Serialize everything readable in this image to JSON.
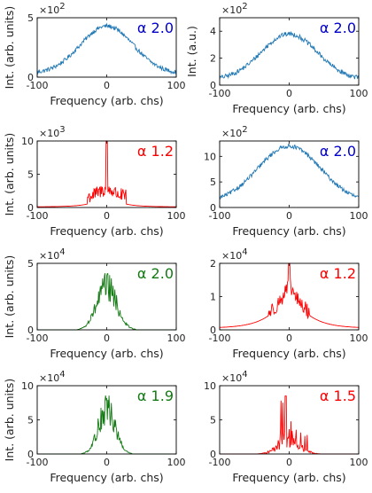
{
  "colors": {
    "blue": "#1f77b4",
    "red": "#ff0000",
    "green": "#137a13",
    "blue_text": "#0000cc"
  },
  "chart_data": [
    {
      "id": "p1",
      "type": "line",
      "color": "blue",
      "xlim": [
        -100,
        100
      ],
      "ylim": [
        0,
        5
      ],
      "xticks": [
        "-100",
        "0",
        "100"
      ],
      "yticks": [
        "0",
        "5"
      ],
      "ytick_values": [
        0,
        5
      ],
      "multiplier": "×10",
      "multiplier_exp": "2",
      "xlabel": "Frequency (arb. chs)",
      "ylabel": "Int. (arb. units)",
      "annotation": {
        "symbol": "α",
        "value": "2.0",
        "color": "blue_text"
      },
      "series": [
        {
          "shape": "broad",
          "peak": 4.3,
          "width": 38,
          "base": 0.3,
          "noise": 0.18,
          "x": [
            -100,
            -75,
            -50,
            -25,
            0,
            25,
            50,
            75,
            100
          ],
          "y": [
            0.6,
            1.0,
            2.0,
            3.5,
            4.3,
            3.5,
            2.0,
            1.0,
            0.6
          ]
        }
      ]
    },
    {
      "id": "p2",
      "type": "line",
      "color": "blue",
      "xlim": [
        -100,
        100
      ],
      "ylim": [
        0,
        5
      ],
      "xticks": [
        "-100",
        "0",
        "100"
      ],
      "yticks": [
        "0",
        "2",
        "4"
      ],
      "ytick_values": [
        0,
        2,
        4
      ],
      "multiplier": "×10",
      "multiplier_exp": "2",
      "xlabel": "Frequency (arb. chs)",
      "ylabel": "Int. (a.u.)",
      "annotation": {
        "symbol": "α",
        "value": "2.0",
        "color": "blue_text"
      },
      "series": [
        {
          "shape": "broad",
          "peak": 3.8,
          "width": 40,
          "base": 0.4,
          "noise": 0.17,
          "x": [
            -100,
            -75,
            -50,
            -25,
            0,
            25,
            50,
            75,
            100
          ],
          "y": [
            0.7,
            1.1,
            2.0,
            3.2,
            3.8,
            3.2,
            2.0,
            1.1,
            0.7
          ]
        }
      ]
    },
    {
      "id": "p3",
      "type": "line",
      "color": "red",
      "xlim": [
        -100,
        100
      ],
      "ylim": [
        0,
        10
      ],
      "xticks": [
        "-100",
        "0",
        "100"
      ],
      "yticks": [
        "0",
        "5",
        "10"
      ],
      "ytick_values": [
        0,
        5,
        10
      ],
      "multiplier": "×10",
      "multiplier_exp": "3",
      "xlabel": "Frequency (arb. chs)",
      "ylabel": "Int. (arb. units)",
      "annotation": {
        "symbol": "α",
        "value": "1.2",
        "color": "red"
      },
      "series": [
        {
          "shape": "spiky",
          "peak": 10,
          "width": 18,
          "base": 0.05,
          "noise": 1.2,
          "x": [
            -100,
            -50,
            -20,
            -10,
            0,
            10,
            20,
            50,
            100
          ],
          "y": [
            0.1,
            0.4,
            1.5,
            2.5,
            10,
            2.5,
            1.5,
            0.4,
            0.1
          ]
        }
      ]
    },
    {
      "id": "p4",
      "type": "line",
      "color": "blue",
      "xlim": [
        -100,
        100
      ],
      "ylim": [
        0,
        13
      ],
      "xticks": [
        "-100",
        "0",
        "100"
      ],
      "yticks": [
        "0",
        "5",
        "10"
      ],
      "ytick_values": [
        0,
        5,
        10
      ],
      "multiplier": "×10",
      "multiplier_exp": "2",
      "xlabel": "Frequency (arb. chs)",
      "ylabel": "",
      "annotation": {
        "symbol": "α",
        "value": "2.0",
        "color": "blue_text"
      },
      "series": [
        {
          "shape": "broad",
          "peak": 12,
          "width": 45,
          "base": 1.0,
          "noise": 0.4,
          "x": [
            -100,
            -75,
            -50,
            -25,
            0,
            25,
            50,
            75,
            100
          ],
          "y": [
            2.2,
            3.5,
            6.0,
            9.5,
            12.0,
            9.5,
            6.0,
            3.5,
            2.2
          ]
        }
      ]
    },
    {
      "id": "p5",
      "type": "line",
      "color": "green",
      "xlim": [
        -100,
        100
      ],
      "ylim": [
        0,
        5
      ],
      "xticks": [
        "-100",
        "0",
        "100"
      ],
      "yticks": [
        "0",
        "5"
      ],
      "ytick_values": [
        0,
        5
      ],
      "multiplier": "×10",
      "multiplier_exp": "4",
      "xlabel": "Frequency (arb. chs)",
      "ylabel": "Int. (arb. units)",
      "annotation": {
        "symbol": "α",
        "value": "2.0",
        "color": "green"
      },
      "series": [
        {
          "shape": "narrow",
          "peak": 3.8,
          "width": 14,
          "base": 0.0,
          "noise": 0.5,
          "x": [
            -100,
            -40,
            -20,
            -10,
            0,
            10,
            20,
            40,
            100
          ],
          "y": [
            0,
            0.1,
            1.2,
            3.0,
            3.8,
            3.0,
            1.2,
            0.1,
            0
          ]
        }
      ]
    },
    {
      "id": "p6",
      "type": "line",
      "color": "red",
      "xlim": [
        -100,
        100
      ],
      "ylim": [
        0,
        2
      ],
      "xticks": [
        "-100",
        "0",
        "100"
      ],
      "yticks": [
        "0",
        "1",
        "2"
      ],
      "ytick_values": [
        0,
        1,
        2
      ],
      "multiplier": "×10",
      "multiplier_exp": "4",
      "xlabel": "Frequency (arb. chs)",
      "ylabel": "",
      "annotation": {
        "symbol": "α",
        "value": "1.2",
        "color": "red"
      },
      "series": [
        {
          "shape": "cusp",
          "peak": 2.0,
          "width": 25,
          "base": 0.05,
          "noise": 0.15,
          "x": [
            -100,
            -50,
            -25,
            -10,
            0,
            10,
            25,
            50,
            100
          ],
          "y": [
            0.1,
            0.3,
            0.7,
            1.3,
            2.0,
            1.3,
            0.7,
            0.3,
            0.1
          ]
        }
      ]
    },
    {
      "id": "p7",
      "type": "line",
      "color": "green",
      "xlim": [
        -100,
        100
      ],
      "ylim": [
        0,
        10
      ],
      "xticks": [
        "-100",
        "0",
        "100"
      ],
      "yticks": [
        "0",
        "5",
        "10"
      ],
      "ytick_values": [
        0,
        5,
        10
      ],
      "multiplier": "×10",
      "multiplier_exp": "4",
      "xlabel": "Frequency (arb. chs)",
      "ylabel": "Int. (arb. units)",
      "annotation": {
        "symbol": "α",
        "value": "1.9",
        "color": "green"
      },
      "series": [
        {
          "shape": "narrow",
          "peak": 7.8,
          "width": 12,
          "base": 0.0,
          "noise": 0.9,
          "x": [
            -100,
            -40,
            -20,
            -10,
            0,
            10,
            20,
            40,
            100
          ],
          "y": [
            0,
            0.2,
            2.5,
            6.0,
            7.8,
            6.0,
            2.5,
            0.2,
            0
          ]
        }
      ]
    },
    {
      "id": "p8",
      "type": "line",
      "color": "red",
      "xlim": [
        -100,
        100
      ],
      "ylim": [
        0,
        10
      ],
      "xticks": [
        "-100",
        "0",
        "100"
      ],
      "yticks": [
        "0",
        "5",
        "10"
      ],
      "ytick_values": [
        0,
        5,
        10
      ],
      "multiplier": "×10",
      "multiplier_exp": "4",
      "xlabel": "Frequency (arb. chs)",
      "ylabel": "",
      "annotation": {
        "symbol": "α",
        "value": "1.5",
        "color": "red"
      },
      "series": [
        {
          "shape": "spikes",
          "peak": 8.5,
          "width": 15,
          "base": 0.0,
          "noise": 1.5,
          "x": [
            -100,
            -40,
            -20,
            -5,
            0,
            5,
            20,
            40,
            100
          ],
          "y": [
            0,
            0.1,
            1.5,
            8.5,
            5.0,
            6.5,
            3.5,
            0.1,
            0
          ]
        }
      ]
    }
  ]
}
